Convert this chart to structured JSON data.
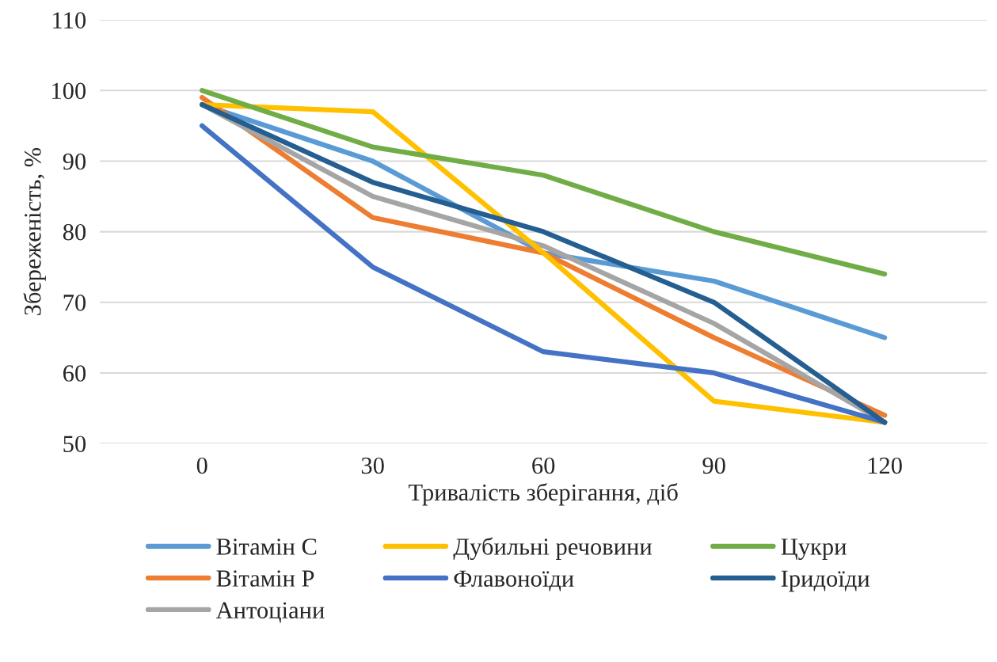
{
  "chart_data": {
    "type": "line",
    "xlabel": "Тривалість зберігання, діб",
    "ylabel": "Збереженість, %",
    "x": [
      0,
      30,
      60,
      90,
      120
    ],
    "xlim": [
      -18,
      138
    ],
    "xticks": [
      0,
      30,
      60,
      90,
      120
    ],
    "ylim": [
      50,
      110
    ],
    "yticks": [
      50,
      60,
      70,
      80,
      90,
      100,
      110
    ],
    "grid": "y",
    "legend": "bottom",
    "marker": "none",
    "line_style": "solid",
    "series": [
      {
        "name": "Вітамін С",
        "color": "#5b9bd5",
        "values": [
          98,
          90,
          77,
          73,
          65
        ]
      },
      {
        "name": "Вітамін Р",
        "color": "#ed7d31",
        "values": [
          99,
          82,
          77,
          65,
          54
        ]
      },
      {
        "name": "Антоціани",
        "color": "#a5a5a5",
        "values": [
          98,
          85,
          78,
          67,
          53
        ]
      },
      {
        "name": "Дубильні речовини",
        "color": "#ffc000",
        "values": [
          98,
          97,
          77,
          56,
          53
        ]
      },
      {
        "name": "Флавоноїди",
        "color": "#4472c4",
        "values": [
          95,
          75,
          63,
          60,
          53
        ]
      },
      {
        "name": "Цукри",
        "color": "#70ad47",
        "values": [
          100,
          92,
          88,
          80,
          74
        ]
      },
      {
        "name": "Іридоїди",
        "color": "#255e91",
        "values": [
          98,
          87,
          80,
          70,
          53
        ]
      }
    ]
  }
}
